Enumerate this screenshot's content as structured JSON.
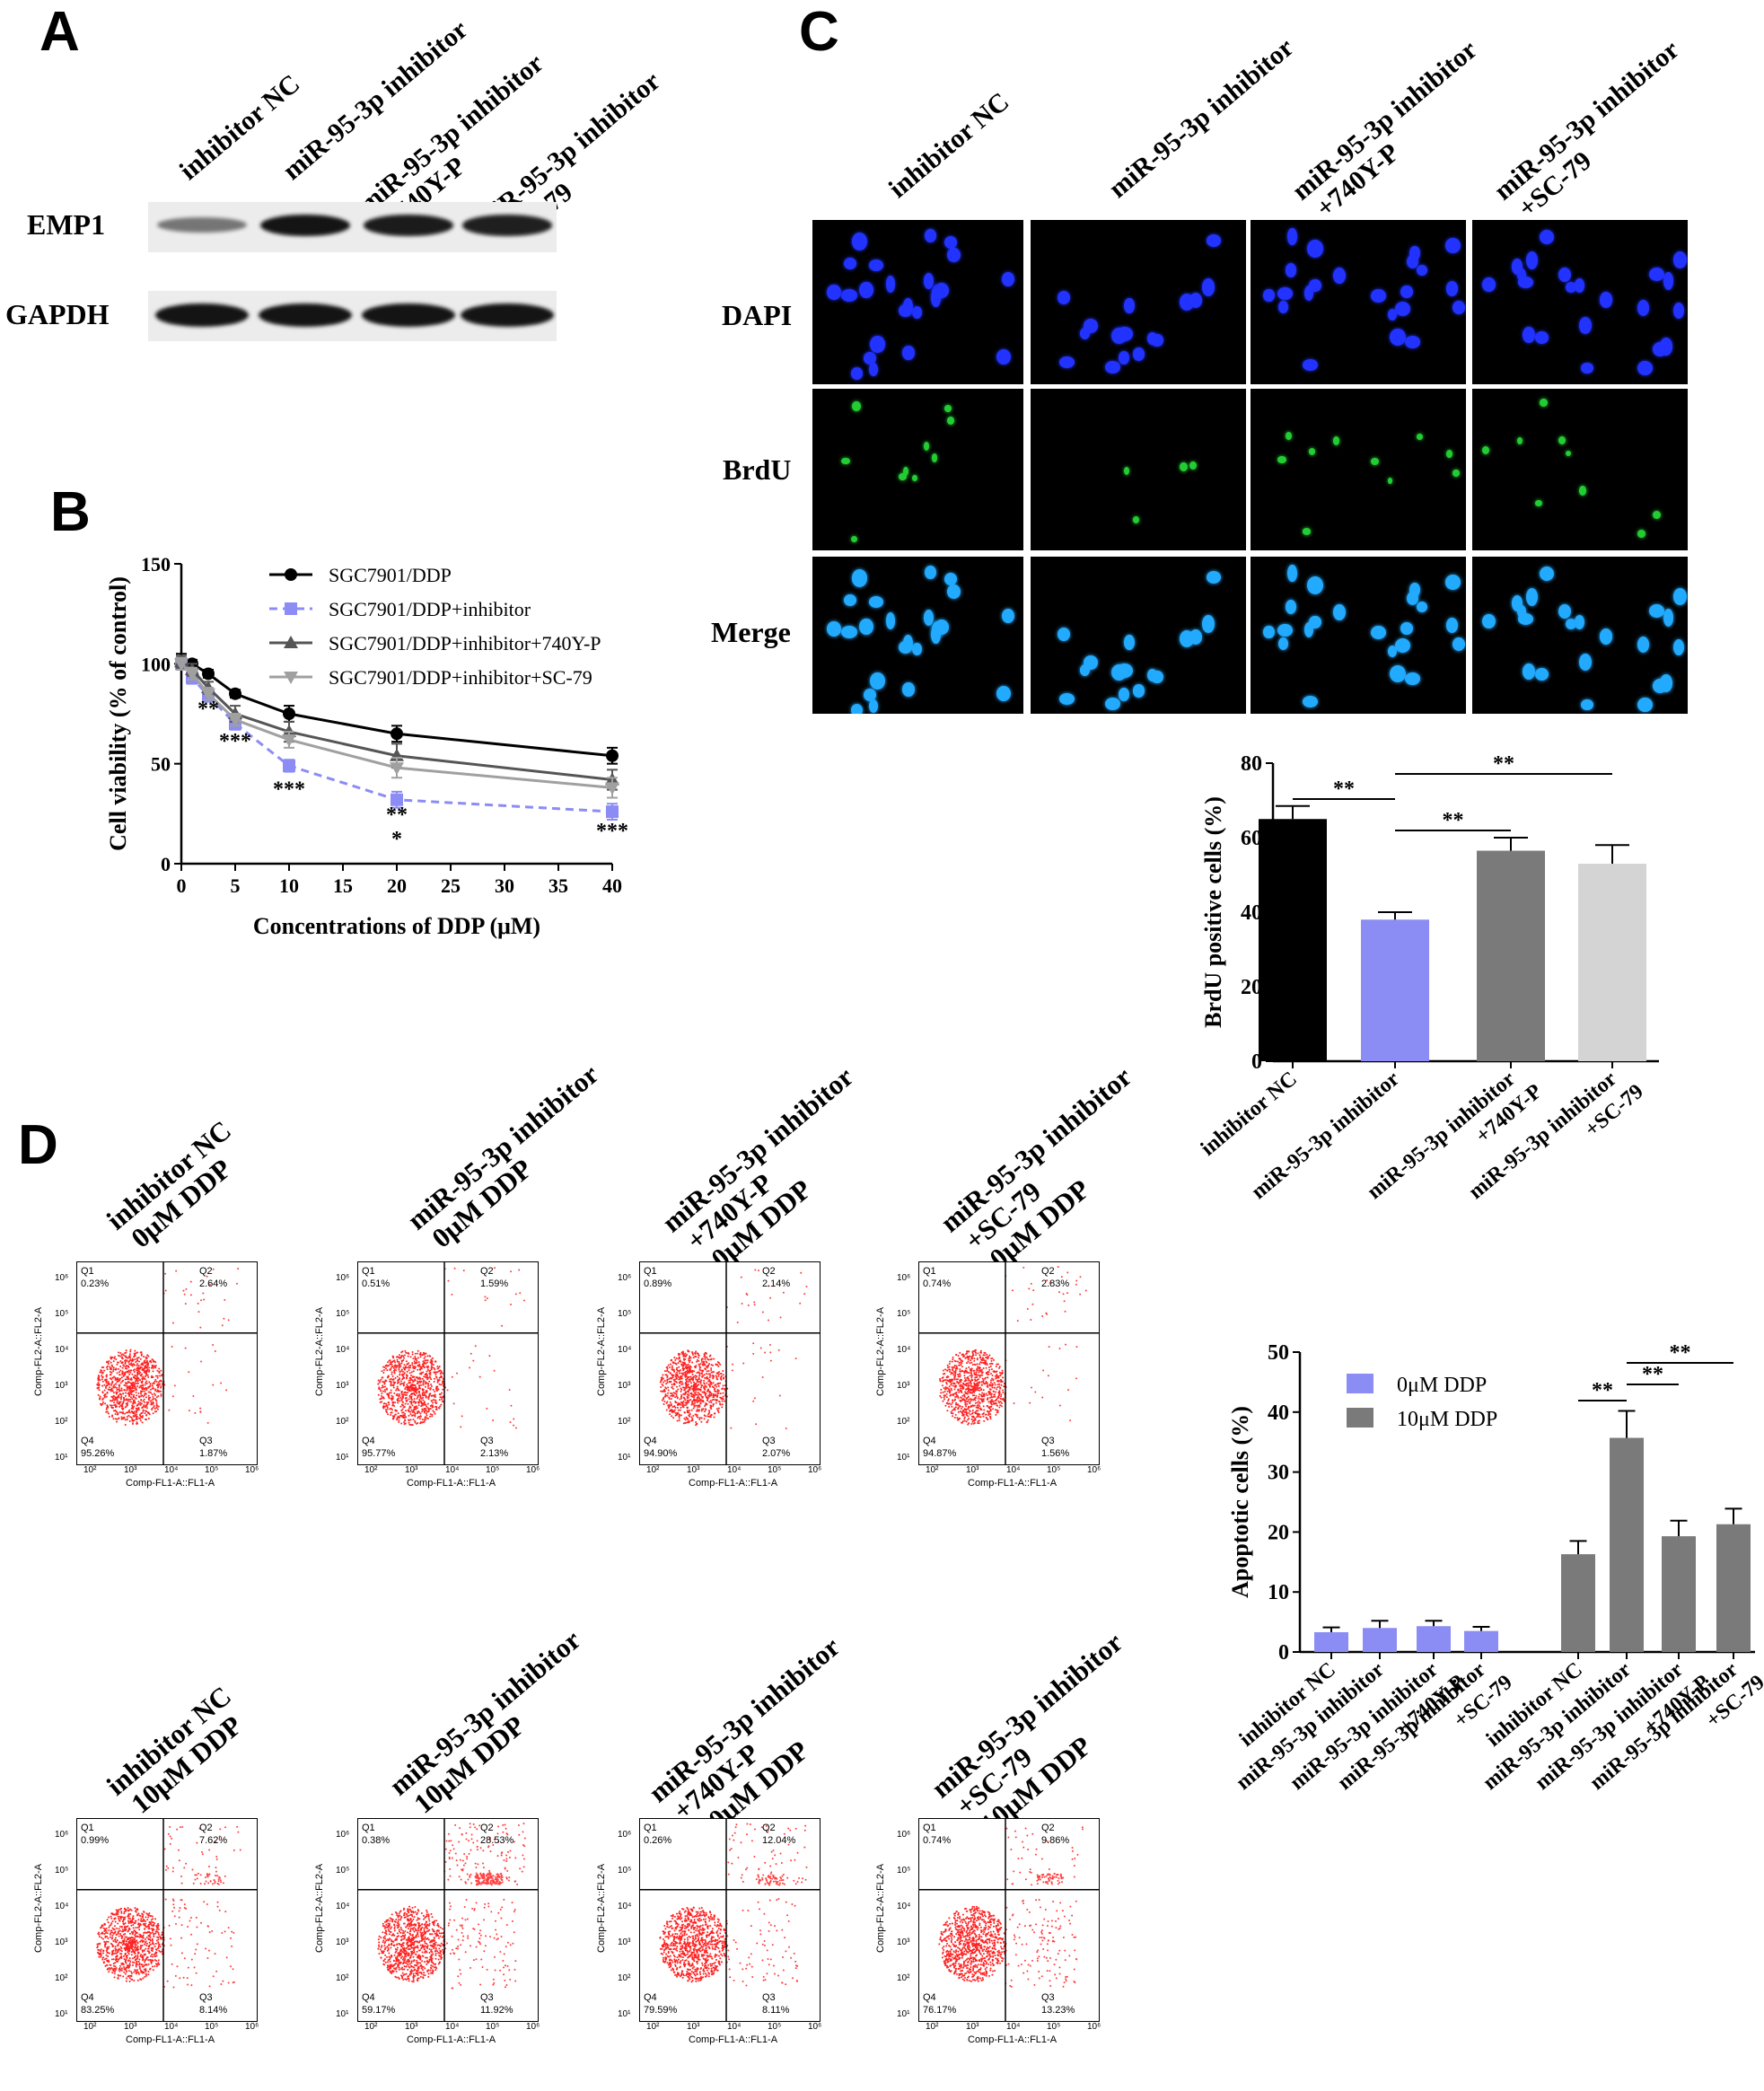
{
  "panels": {
    "a": "A",
    "b": "B",
    "c": "C",
    "d": "D"
  },
  "panelA": {
    "lanes": [
      {
        "lines": [
          "inhibitor NC"
        ]
      },
      {
        "lines": [
          "miR-95-3p inhibitor"
        ]
      },
      {
        "lines": [
          "miR-95-3p inhibitor",
          "+740Y-P"
        ]
      },
      {
        "lines": [
          "miR-95-3p inhibitor",
          "+SC-79"
        ]
      }
    ],
    "proteins": [
      "EMP1",
      "GAPDH"
    ],
    "emp1_intensity": [
      0.35,
      1.0,
      0.95,
      0.92
    ],
    "gapdh_intensity": [
      1.0,
      1.0,
      1.0,
      1.0
    ]
  },
  "panelC": {
    "columns": [
      {
        "lines": [
          "inhibitor NC"
        ]
      },
      {
        "lines": [
          "miR-95-3p inhibitor"
        ]
      },
      {
        "lines": [
          "miR-95-3p inhibitor",
          "+740Y-P"
        ]
      },
      {
        "lines": [
          "miR-95-3p inhibitor",
          "+SC-79"
        ]
      }
    ],
    "rows": [
      "DAPI",
      "BrdU",
      "Merge"
    ],
    "colors": {
      "dapi": "#2233ff",
      "brdu": "#22cc33",
      "merge": "#22aaff"
    }
  },
  "panelD": {
    "top_titles": [
      {
        "lines": [
          "inhibitor NC",
          "0μM DDP"
        ]
      },
      {
        "lines": [
          "miR-95-3p inhibitor",
          "0μM DDP"
        ]
      },
      {
        "lines": [
          "miR-95-3p inhibitor",
          "+740Y-P",
          "0μM DDP"
        ]
      },
      {
        "lines": [
          "miR-95-3p inhibitor",
          "+SC-79",
          "0μM DDP"
        ]
      }
    ],
    "bottom_titles": [
      {
        "lines": [
          "inhibitor NC",
          "10μM DDP"
        ]
      },
      {
        "lines": [
          "miR-95-3p inhibitor",
          "10μM DDP"
        ]
      },
      {
        "lines": [
          "miR-95-3p inhibitor",
          "+740Y-P",
          "10μM DDP"
        ]
      },
      {
        "lines": [
          "miR-95-3p inhibitor",
          "+SC-79",
          "10μM DDP"
        ]
      }
    ],
    "flow_axis_x": "Comp-FL1-A::FL1-A",
    "flow_axis_y": "Comp-FL2-A::FL2-A",
    "flow_ticks_x": [
      "10²",
      "10³",
      "10⁴",
      "10⁵",
      "10⁶"
    ],
    "flow_ticks_y": [
      "10¹",
      "10²",
      "10³",
      "10⁴",
      "10⁵",
      "10⁶"
    ],
    "flow_top": [
      {
        "q1": "0.23%",
        "q2": "2.64%",
        "q3": "1.87%",
        "q4": "95.26%"
      },
      {
        "q1": "0.51%",
        "q2": "1.59%",
        "q3": "2.13%",
        "q4": "95.77%"
      },
      {
        "q1": "0.89%",
        "q2": "2.14%",
        "q3": "2.07%",
        "q4": "94.90%"
      },
      {
        "q1": "0.74%",
        "q2": "2.83%",
        "q3": "1.56%",
        "q4": "94.87%"
      }
    ],
    "flow_bottom": [
      {
        "q1": "0.99%",
        "q2": "7.62%",
        "q3": "8.14%",
        "q4": "83.25%"
      },
      {
        "q1": "0.38%",
        "q2": "28.53%",
        "q3": "11.92%",
        "q4": "59.17%"
      },
      {
        "q1": "0.26%",
        "q2": "12.04%",
        "q3": "8.11%",
        "q4": "79.59%"
      },
      {
        "q1": "0.74%",
        "q2": "9.86%",
        "q3": "13.23%",
        "q4": "76.17%"
      }
    ],
    "quadrant_names": [
      "Q1",
      "Q2",
      "Q3",
      "Q4"
    ]
  },
  "chart_data": [
    {
      "type": "line",
      "panel": "B",
      "xlabel": "Concentrations of DDP (μM)",
      "ylabel": "Cell viability (% of control)",
      "xlim": [
        0,
        40
      ],
      "ylim": [
        0,
        150
      ],
      "xticks": [
        0,
        5,
        10,
        15,
        20,
        25,
        30,
        35,
        40
      ],
      "yticks": [
        0,
        50,
        100,
        150
      ],
      "legend_position": "top-right",
      "x": [
        0,
        1,
        2.5,
        5,
        10,
        20,
        40
      ],
      "series": [
        {
          "name": "SGC7901/DDP",
          "color": "#000000",
          "marker": "circle",
          "dashed": false,
          "values": [
            101,
            100,
            95,
            85,
            75,
            65,
            54
          ],
          "err": [
            4,
            2,
            2,
            2,
            4,
            4,
            4
          ]
        },
        {
          "name": "SGC7901/DDP+inhibitor",
          "color": "#8c8cf5",
          "marker": "square",
          "dashed": true,
          "values": [
            100,
            93,
            84,
            70,
            49,
            32,
            26
          ],
          "err": [
            3,
            3,
            3,
            3,
            3,
            4,
            4
          ]
        },
        {
          "name": "SGC7901/DDP+inhibitor+740Y-P",
          "color": "#555555",
          "marker": "triangle-up",
          "dashed": false,
          "values": [
            101,
            97,
            88,
            75,
            66,
            54,
            42
          ],
          "err": [
            3,
            3,
            3,
            4,
            5,
            6,
            5
          ]
        },
        {
          "name": "SGC7901/DDP+inhibitor+SC-79",
          "color": "#a0a0a0",
          "marker": "triangle-down",
          "dashed": false,
          "values": [
            100,
            95,
            85,
            72,
            62,
            48,
            38
          ],
          "err": [
            3,
            3,
            3,
            3,
            4,
            5,
            5
          ]
        }
      ],
      "annotations": [
        {
          "x": 2.5,
          "y": 74,
          "text": "**"
        },
        {
          "x": 5,
          "y": 58,
          "text": "***"
        },
        {
          "x": 10,
          "y": 34,
          "text": "***"
        },
        {
          "x": 20,
          "y": 21,
          "text": "**"
        },
        {
          "x": 20,
          "y": 9,
          "text": "*"
        },
        {
          "x": 40,
          "y": 13,
          "text": "***"
        }
      ]
    },
    {
      "type": "bar",
      "panel": "C",
      "ylabel": "BrdU positive cells (%)",
      "ylim": [
        0,
        80
      ],
      "yticks": [
        0,
        20,
        40,
        60,
        80
      ],
      "categories": [
        {
          "lines": [
            "inhibitor NC"
          ]
        },
        {
          "lines": [
            "miR-95-3p inhibitor"
          ]
        },
        {
          "lines": [
            "miR-95-3p inhibitor",
            "+740Y-P"
          ]
        },
        {
          "lines": [
            "miR-95-3p inhibitor",
            "+SC-79"
          ]
        }
      ],
      "values": [
        65,
        38,
        56.5,
        53
      ],
      "err": [
        3.5,
        2,
        3.5,
        5
      ],
      "colors": [
        "#000000",
        "#8c8cf5",
        "#7a7a7a",
        "#d4d4d4"
      ],
      "significance": [
        {
          "from": 0,
          "to": 1,
          "text": "**"
        },
        {
          "from": 1,
          "to": 2,
          "text": "**"
        },
        {
          "from": 1,
          "to": 3,
          "text": "**"
        }
      ]
    },
    {
      "type": "bar",
      "panel": "D",
      "ylabel": "Apoptotic cells (%)",
      "ylim": [
        0,
        50
      ],
      "yticks": [
        0,
        10,
        20,
        30,
        40,
        50
      ],
      "legend_position": "top-left",
      "categories": [
        {
          "lines": [
            "inhibitor NC"
          ]
        },
        {
          "lines": [
            "miR-95-3p inhibitor"
          ]
        },
        {
          "lines": [
            "miR-95-3p inhibitor",
            "+740Y-P"
          ]
        },
        {
          "lines": [
            "miR-95-3p inhibitor",
            "+SC-79"
          ]
        },
        {
          "lines": [
            "inhibitor NC"
          ]
        },
        {
          "lines": [
            "miR-95-3p inhibitor"
          ]
        },
        {
          "lines": [
            "miR-95-3p inhibitor",
            "+740Y-P"
          ]
        },
        {
          "lines": [
            "miR-95-3p inhibitor",
            "+SC-79"
          ]
        }
      ],
      "series": [
        {
          "name": "0μM DDP",
          "color": "#8c8cf5",
          "values": [
            3.3,
            4.0,
            4.3,
            3.5,
            null,
            null,
            null,
            null
          ],
          "err": [
            0.8,
            1.2,
            0.9,
            0.7,
            null,
            null,
            null,
            null
          ]
        },
        {
          "name": "10μM DDP",
          "color": "#7a7a7a",
          "values": [
            null,
            null,
            null,
            null,
            16.3,
            35.7,
            19.3,
            21.3
          ],
          "err": [
            null,
            null,
            null,
            null,
            2.2,
            4.5,
            2.6,
            2.6
          ]
        }
      ],
      "significance": [
        {
          "from": 4,
          "to": 5,
          "text": "**"
        },
        {
          "from": 5,
          "to": 6,
          "text": "**"
        },
        {
          "from": 5,
          "to": 7,
          "text": "**"
        }
      ]
    }
  ]
}
